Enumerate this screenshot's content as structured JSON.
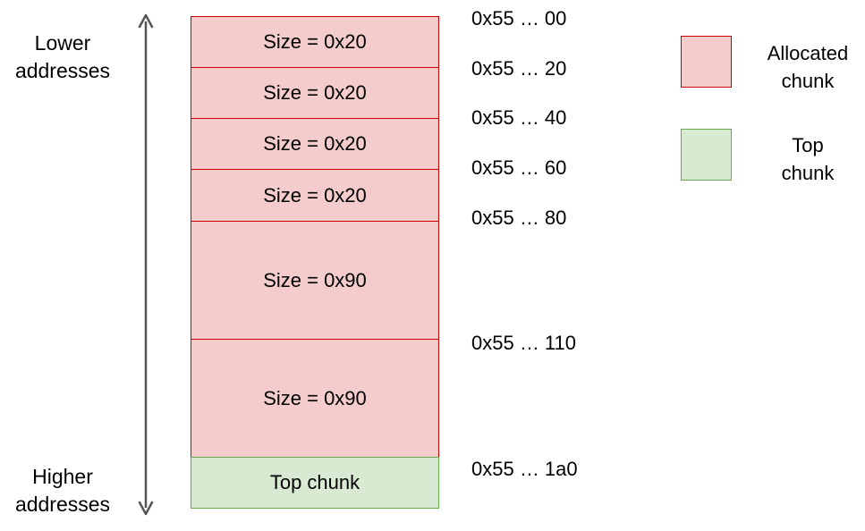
{
  "axis": {
    "lower_label": "Lower\naddresses",
    "higher_label": "Higher\naddresses"
  },
  "chunks": [
    {
      "label": "Size = 0x20",
      "kind": "allocated",
      "address": "0x55 … 00"
    },
    {
      "label": "Size = 0x20",
      "kind": "allocated",
      "address": "0x55 … 20"
    },
    {
      "label": "Size = 0x20",
      "kind": "allocated",
      "address": "0x55 … 40"
    },
    {
      "label": "Size = 0x20",
      "kind": "allocated",
      "address": "0x55 … 60"
    },
    {
      "label": "Size = 0x90",
      "kind": "allocated",
      "address": "0x55 … 80"
    },
    {
      "label": "Size = 0x90",
      "kind": "allocated",
      "address": "0x55 … 110"
    },
    {
      "label": "Top chunk",
      "kind": "top",
      "address": "0x55 … 1a0"
    }
  ],
  "legend": {
    "allocated_line1": "Allocated",
    "allocated_line2": "chunk",
    "top_line1": "Top",
    "top_line2": "chunk"
  },
  "colors": {
    "allocated_fill": "#f4cccc",
    "allocated_border": "#cc0000",
    "top_fill": "#d9ead3",
    "top_border": "#6aa84f",
    "axis_arrow": "#555555"
  }
}
